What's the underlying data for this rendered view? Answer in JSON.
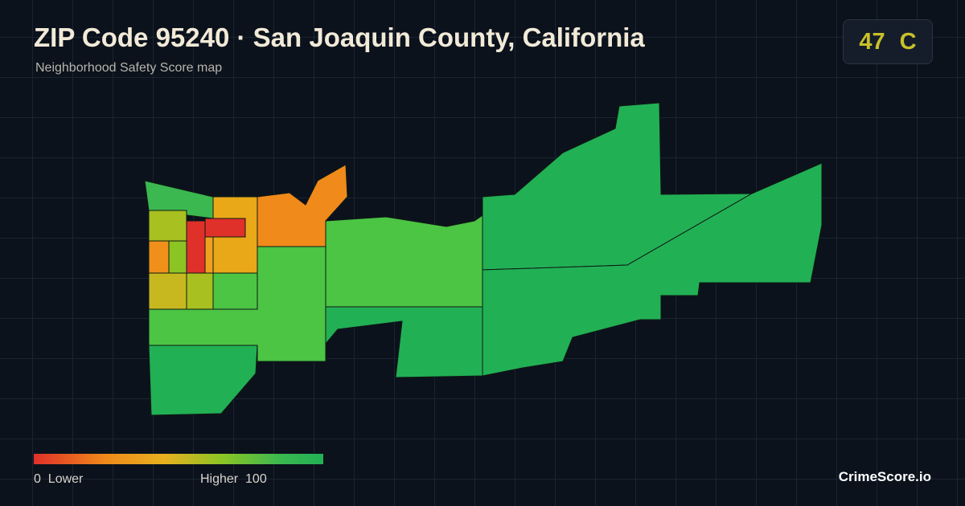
{
  "header": {
    "title": "ZIP Code 95240 · San Joaquin County, California",
    "subtitle": "Neighborhood Safety Score map"
  },
  "score": {
    "value": 47,
    "grade": "C"
  },
  "legend": {
    "min": 0,
    "min_label": "Lower",
    "max_label": "Higher",
    "max": 100
  },
  "brand": "CrimeScore.io"
}
